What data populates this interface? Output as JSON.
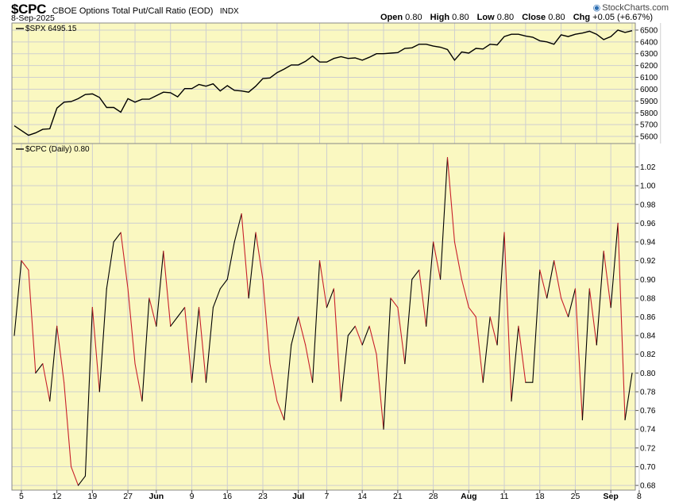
{
  "header": {
    "symbol": "$CPC",
    "name": "CBOE Options Total Put/Call Ratio (EOD)",
    "exchange": "INDX",
    "date": "8-Sep-2025",
    "logo": "StockCharts.com",
    "quote": {
      "open_label": "Open",
      "open": "0.80",
      "high_label": "High",
      "high": "0.80",
      "low_label": "Low",
      "low": "0.80",
      "close_label": "Close",
      "close": "0.80",
      "chg_label": "Chg",
      "chg": "+0.05 (+6.67%)"
    }
  },
  "colors": {
    "background": "#faf8c1",
    "grid": "#cfcfcf",
    "up": "#000000",
    "down": "#c8202a",
    "spx_line": "#000000"
  },
  "chart_data": [
    {
      "type": "line",
      "legend": "$SPX 6495.15",
      "ylim": [
        5540,
        6560
      ],
      "yticks": [
        5600,
        5700,
        5800,
        5900,
        6000,
        6100,
        6200,
        6300,
        6400,
        6500
      ],
      "xticks": [
        "5",
        "12",
        "19",
        "27",
        "Jun",
        "9",
        "16",
        "23",
        "Jul",
        "7",
        "14",
        "21",
        "28",
        "Aug",
        "11",
        "18",
        "25",
        "Sep",
        "8"
      ],
      "xtick_index": [
        2,
        7,
        12,
        17,
        22,
        27,
        32,
        37,
        43,
        47,
        52,
        57,
        62,
        67,
        72,
        77,
        82,
        87,
        91
      ],
      "values": [
        5690,
        5650,
        5610,
        5630,
        5660,
        5665,
        5840,
        5890,
        5895,
        5920,
        5955,
        5960,
        5930,
        5845,
        5845,
        5805,
        5920,
        5890,
        5915,
        5915,
        5945,
        5975,
        5970,
        5935,
        6005,
        6005,
        6040,
        6025,
        6045,
        5985,
        6030,
        5990,
        5985,
        5975,
        6025,
        6090,
        6095,
        6140,
        6170,
        6205,
        6205,
        6235,
        6280,
        6230,
        6230,
        6260,
        6275,
        6260,
        6265,
        6245,
        6270,
        6300,
        6300,
        6305,
        6310,
        6345,
        6350,
        6380,
        6380,
        6365,
        6355,
        6335,
        6245,
        6315,
        6305,
        6345,
        6340,
        6380,
        6375,
        6445,
        6465,
        6465,
        6450,
        6440,
        6410,
        6400,
        6380,
        6460,
        6445,
        6465,
        6475,
        6490,
        6465,
        6420,
        6445,
        6500,
        6480,
        6495
      ]
    },
    {
      "type": "line",
      "legend": "$CPC (Daily) 0.80",
      "ylim": [
        0.675,
        1.045
      ],
      "yticks": [
        0.68,
        0.7,
        0.72,
        0.74,
        0.76,
        0.78,
        0.8,
        0.82,
        0.84,
        0.86,
        0.88,
        0.9,
        0.92,
        0.94,
        0.96,
        0.98,
        1.0,
        1.02
      ],
      "xticks": [
        "5",
        "12",
        "19",
        "27",
        "Jun",
        "9",
        "16",
        "23",
        "Jul",
        "7",
        "14",
        "21",
        "28",
        "Aug",
        "11",
        "18",
        "25",
        "Sep",
        "8"
      ],
      "xtick_index": [
        1,
        6,
        11,
        16,
        20,
        25,
        30,
        35,
        40,
        44,
        49,
        54,
        59,
        64,
        69,
        74,
        79,
        84,
        88
      ],
      "values": [
        0.84,
        0.92,
        0.91,
        0.8,
        0.81,
        0.77,
        0.85,
        0.79,
        0.7,
        0.68,
        0.69,
        0.87,
        0.78,
        0.89,
        0.94,
        0.95,
        0.89,
        0.81,
        0.77,
        0.88,
        0.85,
        0.93,
        0.85,
        0.86,
        0.87,
        0.79,
        0.87,
        0.79,
        0.87,
        0.89,
        0.9,
        0.94,
        0.97,
        0.88,
        0.95,
        0.9,
        0.81,
        0.77,
        0.75,
        0.83,
        0.86,
        0.83,
        0.79,
        0.92,
        0.87,
        0.89,
        0.77,
        0.84,
        0.85,
        0.83,
        0.85,
        0.82,
        0.74,
        0.88,
        0.87,
        0.81,
        0.9,
        0.91,
        0.85,
        0.94,
        0.9,
        1.03,
        0.94,
        0.9,
        0.87,
        0.86,
        0.79,
        0.86,
        0.83,
        0.95,
        0.77,
        0.85,
        0.79,
        0.79,
        0.91,
        0.88,
        0.92,
        0.88,
        0.86,
        0.89,
        0.75,
        0.89,
        0.83,
        0.93,
        0.87,
        0.96,
        0.75,
        0.8
      ]
    }
  ]
}
